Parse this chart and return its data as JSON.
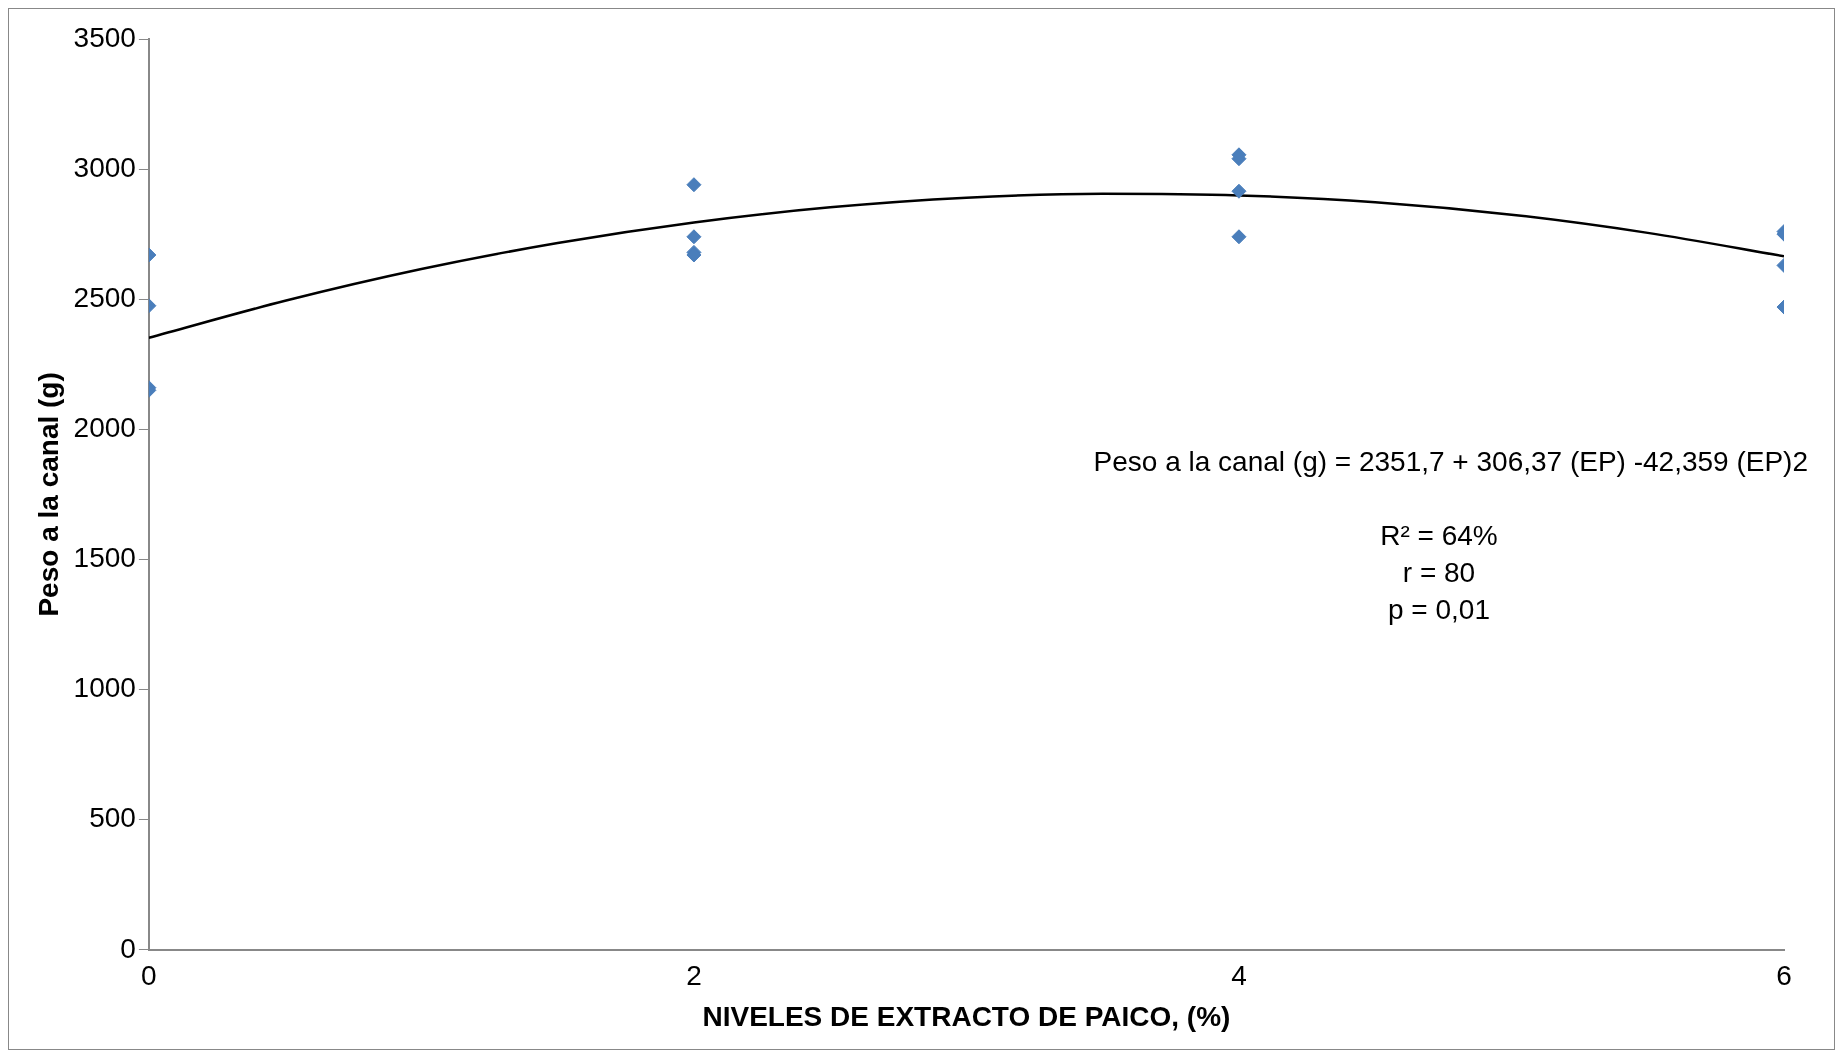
{
  "chart_data": {
    "type": "scatter",
    "xlabel": "NIVELES DE EXTRACTO DE PAICO, (%)",
    "ylabel": "Peso a la canal (g)",
    "xlim": [
      0,
      6
    ],
    "xticks": [
      0,
      2,
      4,
      6
    ],
    "ylim": [
      0,
      3500
    ],
    "yticks": [
      0,
      500,
      1000,
      1500,
      2000,
      2500,
      3000,
      3500
    ],
    "grid": false,
    "legend": false,
    "marker": "diamond",
    "series": [
      {
        "color": "#4a7ebb",
        "x": [
          0,
          0,
          0,
          0,
          2,
          2,
          2,
          2,
          4,
          4,
          4,
          4,
          6,
          6,
          6,
          6
        ],
        "values": [
          2670,
          2475,
          2160,
          2150,
          2940,
          2740,
          2680,
          2670,
          3055,
          3040,
          2915,
          2740,
          2760,
          2750,
          2630,
          2470
        ]
      },
      {
        "type": "line",
        "color": "#000000",
        "marker": "none",
        "x": [
          0,
          0.5,
          1,
          1.5,
          2,
          2.5,
          3,
          3.5,
          4,
          4.5,
          5,
          5.5,
          6
        ],
        "values": [
          2352,
          2494,
          2616,
          2716,
          2795,
          2853,
          2890,
          2905,
          2899,
          2873,
          2825,
          2755,
          2665
        ]
      }
    ],
    "annotations": [
      "Peso a la canal (g) = 2351,7 + 306,37 (EP) -42,359 (EP)2",
      "R² = 64%",
      "r = 80",
      "p = 0,01"
    ]
  }
}
